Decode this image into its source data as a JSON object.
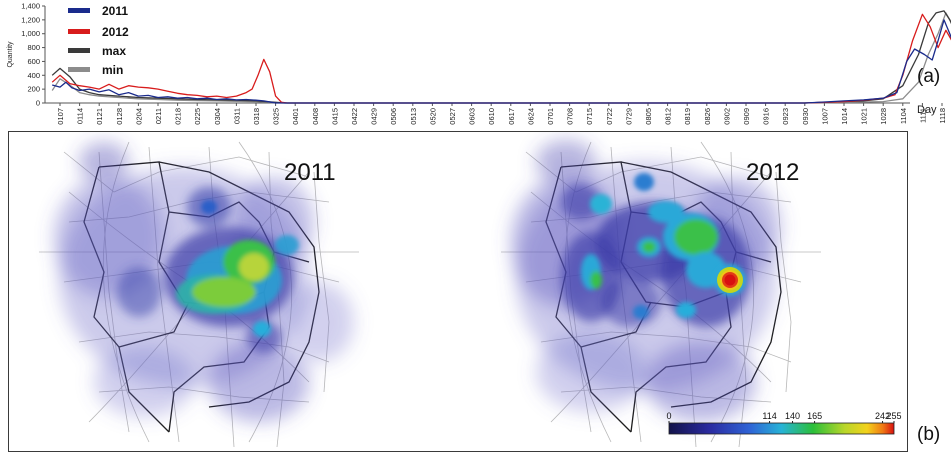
{
  "labels": {
    "panel_a": "(a)",
    "panel_b": "(b)",
    "map_2011": "2011",
    "map_2012": "2012"
  },
  "colors": {
    "series_2011": "#1a2b8c",
    "series_2012": "#d81c1c",
    "series_max": "#3a3a3a",
    "series_min": "#8c8c8c"
  },
  "chart_data": {
    "type": "line",
    "title": "",
    "xlabel": "Day",
    "ylabel": "Quantity",
    "ylim": [
      0,
      1400
    ],
    "yticks": [
      0,
      200,
      400,
      600,
      800,
      1000,
      1200,
      1400
    ],
    "ytick_labels": [
      "0",
      "200",
      "400",
      "600",
      "800",
      "1,000",
      "1,200",
      "1,400"
    ],
    "grid": false,
    "legend_position": "top-left",
    "x_tick_labels": [
      "0107",
      "0114",
      "0121",
      "0128",
      "0204",
      "0211",
      "0218",
      "0225",
      "0304",
      "0311",
      "0318",
      "0325",
      "0401",
      "0408",
      "0415",
      "0422",
      "0429",
      "0506",
      "0513",
      "0520",
      "0527",
      "0603",
      "0610",
      "0617",
      "0624",
      "0701",
      "0708",
      "0715",
      "0722",
      "0729",
      "0805",
      "0812",
      "0819",
      "0826",
      "0902",
      "0909",
      "0916",
      "0923",
      "0930",
      "1007",
      "1014",
      "1021",
      "1028",
      "1104",
      "1111",
      "1118"
    ],
    "series": [
      {
        "name": "2011",
        "points": [
          [
            -0.4,
            260
          ],
          [
            0,
            230
          ],
          [
            0.3,
            300
          ],
          [
            0.6,
            220
          ],
          [
            1,
            180
          ],
          [
            1.5,
            200
          ],
          [
            2,
            160
          ],
          [
            2.5,
            190
          ],
          [
            3,
            120
          ],
          [
            3.5,
            150
          ],
          [
            4,
            100
          ],
          [
            4.5,
            110
          ],
          [
            5,
            80
          ],
          [
            5.5,
            90
          ],
          [
            6,
            70
          ],
          [
            6.5,
            80
          ],
          [
            7,
            60
          ],
          [
            7.5,
            70
          ],
          [
            8,
            50
          ],
          [
            8.5,
            60
          ],
          [
            9,
            45
          ],
          [
            9.5,
            50
          ],
          [
            10,
            40
          ],
          [
            10.4,
            30
          ],
          [
            10.8,
            10
          ],
          [
            11,
            0
          ],
          [
            38,
            0
          ],
          [
            39,
            15
          ],
          [
            40,
            30
          ],
          [
            41,
            45
          ],
          [
            42,
            70
          ],
          [
            42.7,
            150
          ],
          [
            43.2,
            600
          ],
          [
            43.6,
            780
          ],
          [
            44.1,
            700
          ],
          [
            44.5,
            620
          ],
          [
            44.8,
            900
          ],
          [
            45.1,
            1200
          ],
          [
            45.4,
            1000
          ],
          [
            45.8,
            700
          ],
          [
            46.2,
            560
          ],
          [
            46.8,
            580
          ]
        ]
      },
      {
        "name": "2012",
        "points": [
          [
            -0.4,
            300
          ],
          [
            0,
            400
          ],
          [
            0.5,
            280
          ],
          [
            1,
            250
          ],
          [
            1.5,
            230
          ],
          [
            2,
            200
          ],
          [
            2.5,
            270
          ],
          [
            3,
            200
          ],
          [
            3.5,
            250
          ],
          [
            4,
            230
          ],
          [
            4.5,
            220
          ],
          [
            5,
            200
          ],
          [
            5.5,
            170
          ],
          [
            6,
            140
          ],
          [
            6.5,
            120
          ],
          [
            7,
            110
          ],
          [
            7.5,
            90
          ],
          [
            8,
            100
          ],
          [
            8.5,
            80
          ],
          [
            9,
            100
          ],
          [
            9.5,
            150
          ],
          [
            9.8,
            200
          ],
          [
            10.1,
            400
          ],
          [
            10.4,
            630
          ],
          [
            10.7,
            450
          ],
          [
            11,
            100
          ],
          [
            11.3,
            10
          ],
          [
            11.6,
            0
          ],
          [
            38,
            0
          ],
          [
            39,
            10
          ],
          [
            40,
            20
          ],
          [
            41,
            40
          ],
          [
            42,
            70
          ],
          [
            42.6,
            120
          ],
          [
            43,
            400
          ],
          [
            43.5,
            900
          ],
          [
            44,
            1280
          ],
          [
            44.4,
            1100
          ],
          [
            44.8,
            800
          ],
          [
            45.2,
            1050
          ],
          [
            45.6,
            850
          ],
          [
            46,
            650
          ],
          [
            46.4,
            450
          ],
          [
            46.8,
            350
          ]
        ]
      },
      {
        "name": "max",
        "points": [
          [
            -0.4,
            400
          ],
          [
            0,
            500
          ],
          [
            0.5,
            380
          ],
          [
            1,
            200
          ],
          [
            1.5,
            150
          ],
          [
            2,
            120
          ],
          [
            3,
            100
          ],
          [
            4,
            80
          ],
          [
            5,
            70
          ],
          [
            6,
            60
          ],
          [
            7,
            50
          ],
          [
            8,
            45
          ],
          [
            9,
            40
          ],
          [
            10,
            30
          ],
          [
            11,
            10
          ],
          [
            11.5,
            0
          ],
          [
            38,
            0
          ],
          [
            39,
            10
          ],
          [
            40,
            20
          ],
          [
            41,
            30
          ],
          [
            42,
            60
          ],
          [
            43,
            250
          ],
          [
            43.8,
            700
          ],
          [
            44.3,
            1150
          ],
          [
            44.7,
            1300
          ],
          [
            45.1,
            1330
          ],
          [
            45.4,
            1200
          ],
          [
            45.8,
            950
          ],
          [
            46.2,
            750
          ],
          [
            46.8,
            550
          ]
        ]
      },
      {
        "name": "min",
        "points": [
          [
            -0.4,
            180
          ],
          [
            0,
            350
          ],
          [
            0.5,
            260
          ],
          [
            1,
            150
          ],
          [
            1.5,
            120
          ],
          [
            2,
            100
          ],
          [
            3,
            80
          ],
          [
            4,
            60
          ],
          [
            5,
            50
          ],
          [
            6,
            40
          ],
          [
            7,
            35
          ],
          [
            8,
            30
          ],
          [
            9,
            25
          ],
          [
            10,
            20
          ],
          [
            11,
            5
          ],
          [
            11.5,
            0
          ],
          [
            38,
            0
          ],
          [
            40,
            10
          ],
          [
            42,
            20
          ],
          [
            43,
            60
          ],
          [
            43.8,
            300
          ],
          [
            44.3,
            700
          ],
          [
            44.8,
            1000
          ],
          [
            45.2,
            1300
          ],
          [
            45.5,
            1150
          ],
          [
            45.9,
            600
          ],
          [
            46.3,
            300
          ],
          [
            46.8,
            150
          ]
        ]
      }
    ]
  },
  "colorbar": {
    "tick_labels": [
      "0",
      "114",
      "140",
      "165",
      "242",
      "255"
    ],
    "tick_positions": [
      0,
      114,
      140,
      165,
      242,
      255
    ],
    "range": [
      0,
      255
    ]
  }
}
